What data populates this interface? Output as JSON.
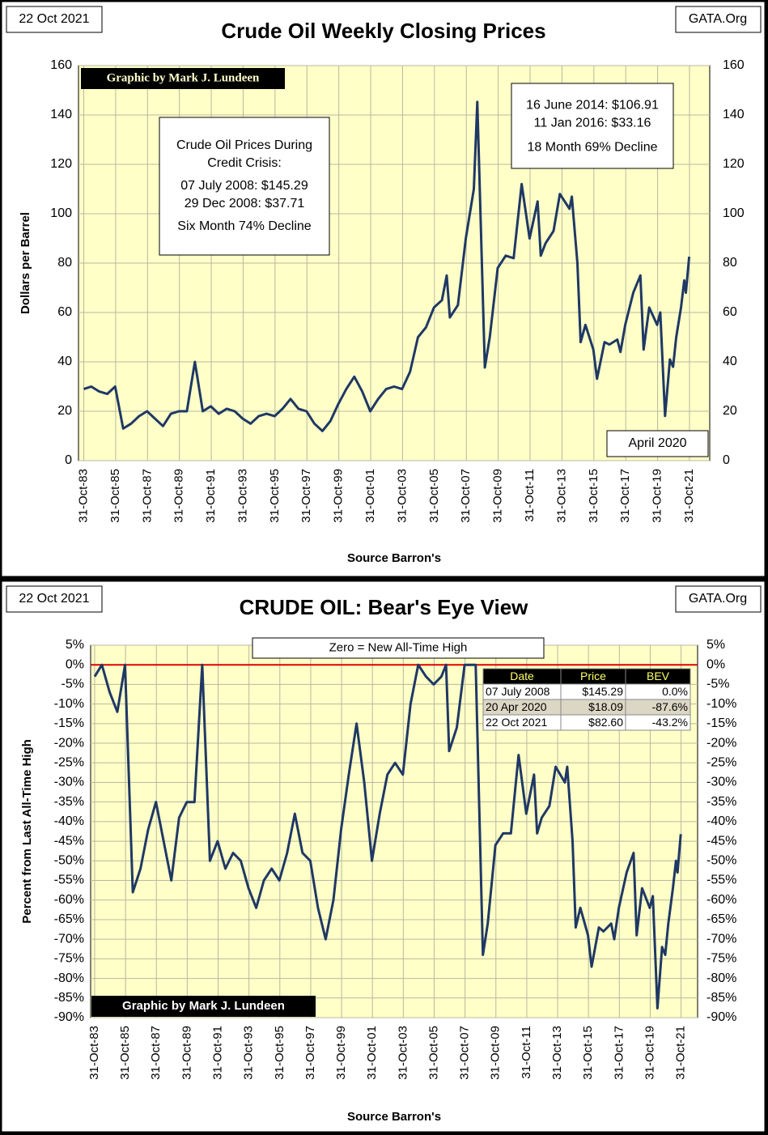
{
  "chart_data": [
    {
      "type": "line",
      "title": "Crude Oil  Weekly Closing Prices",
      "date_stamp": "22 Oct 2021",
      "source_tag": "GATA.Org",
      "x_label": "Source Barron's",
      "y_label": "Dollars  per  Barrel",
      "credit": "Graphic by Mark J. Lundeen",
      "notes": [
        [
          "Crude Oil Prices During",
          "Credit Crisis:",
          "07 July 2008: $145.29",
          "29 Dec 2008:  $37.71",
          "Six Month 74% Decline"
        ],
        [
          "16 June 2014: $106.91",
          "11 Jan 2016:  $33.16",
          "18 Month 69% Decline"
        ],
        [
          "April 2020"
        ]
      ],
      "xlim": [
        1983.5,
        2023.1
      ],
      "ylim": [
        0,
        160
      ],
      "yticks": [
        0,
        20,
        40,
        60,
        80,
        100,
        120,
        140,
        160
      ],
      "grid": true,
      "xticks": [
        {
          "value": 1983.83,
          "label": "31-Oct-83"
        },
        {
          "value": 1985.83,
          "label": "31-Oct-85"
        },
        {
          "value": 1987.83,
          "label": "31-Oct-87"
        },
        {
          "value": 1989.83,
          "label": "31-Oct-89"
        },
        {
          "value": 1991.83,
          "label": "31-Oct-91"
        },
        {
          "value": 1993.83,
          "label": "31-Oct-93"
        },
        {
          "value": 1995.83,
          "label": "31-Oct-95"
        },
        {
          "value": 1997.83,
          "label": "31-Oct-97"
        },
        {
          "value": 1999.83,
          "label": "31-Oct-99"
        },
        {
          "value": 2001.83,
          "label": "31-Oct-01"
        },
        {
          "value": 2003.83,
          "label": "31-Oct-03"
        },
        {
          "value": 2005.83,
          "label": "31-Oct-05"
        },
        {
          "value": 2007.83,
          "label": "31-Oct-07"
        },
        {
          "value": 2009.83,
          "label": "31-Oct-09"
        },
        {
          "value": 2011.83,
          "label": "31-Oct-11"
        },
        {
          "value": 2013.83,
          "label": "31-Oct-13"
        },
        {
          "value": 2015.83,
          "label": "31-Oct-15"
        },
        {
          "value": 2017.83,
          "label": "31-Oct-17"
        },
        {
          "value": 2019.83,
          "label": "31-Oct-19"
        },
        {
          "value": 2021.83,
          "label": "31-Oct-21"
        }
      ],
      "x": [
        1983.83,
        1984.3,
        1984.8,
        1985.3,
        1985.8,
        1986.3,
        1986.8,
        1987.3,
        1987.8,
        1988.3,
        1988.8,
        1989.3,
        1989.8,
        1990.3,
        1990.8,
        1991.3,
        1991.8,
        1992.3,
        1992.8,
        1993.3,
        1993.8,
        1994.3,
        1994.8,
        1995.3,
        1995.8,
        1996.3,
        1996.8,
        1997.3,
        1997.8,
        1998.3,
        1998.8,
        1999.3,
        1999.8,
        2000.3,
        2000.8,
        2001.3,
        2001.8,
        2002.3,
        2002.8,
        2003.3,
        2003.8,
        2004.3,
        2004.8,
        2005.3,
        2005.8,
        2006.3,
        2006.6,
        2006.8,
        2007.3,
        2007.8,
        2008.3,
        2008.52,
        2008.99,
        2009.3,
        2009.8,
        2010.3,
        2010.8,
        2011.3,
        2011.8,
        2012.3,
        2012.5,
        2012.8,
        2013.3,
        2013.7,
        2014.3,
        2014.45,
        2014.8,
        2015.0,
        2015.3,
        2015.8,
        2016.03,
        2016.5,
        2016.8,
        2017.3,
        2017.5,
        2017.8,
        2018.3,
        2018.75,
        2018.95,
        2019.3,
        2019.8,
        2020.0,
        2020.3,
        2020.6,
        2020.8,
        2021.0,
        2021.3,
        2021.5,
        2021.6,
        2021.81
      ],
      "series": [
        {
          "color": "#1f3864",
          "values": [
            29,
            30,
            28,
            27,
            30,
            13,
            15,
            18,
            20,
            17,
            14,
            19,
            20,
            20,
            40,
            20,
            22,
            19,
            21,
            20,
            17,
            15,
            18,
            19,
            18,
            21,
            25,
            21,
            20,
            15,
            12,
            16,
            23,
            29,
            34,
            28,
            20,
            25,
            29,
            30,
            29,
            36,
            50,
            54,
            62,
            65,
            75,
            58,
            63,
            90,
            110,
            145.29,
            37.71,
            50,
            78,
            83,
            82,
            112,
            90,
            105,
            83,
            88,
            93,
            108,
            102,
            106.91,
            80,
            48,
            55,
            45,
            33.16,
            48,
            47,
            49,
            44,
            55,
            68,
            75,
            45,
            62,
            55,
            60,
            18.09,
            41,
            38,
            50,
            62,
            73,
            68,
            82.6
          ]
        }
      ]
    },
    {
      "type": "line",
      "title": "CRUDE OIL:  Bear's Eye View",
      "date_stamp": "22 Oct 2021",
      "source_tag": "GATA.Org",
      "x_label": "Source Barron's",
      "y_label": "Percent from Last  All-Time  High",
      "credit": "Graphic by Mark J. Lundeen",
      "reference_line": {
        "value": 0,
        "label": "Zero = New All-Time High",
        "color": "#e00000"
      },
      "table": {
        "header": [
          "Date",
          "Price",
          "BEV"
        ],
        "rows": [
          [
            "07 July 2008",
            "$145.29",
            "0.0%"
          ],
          [
            "20 Apr 2020",
            "$18.09",
            "-87.6%"
          ],
          [
            "22 Oct 2021",
            "$82.60",
            "-43.2%"
          ]
        ]
      },
      "xlim": [
        1983.57,
        2022.9
      ],
      "ylim": [
        -90,
        5
      ],
      "grid": true,
      "yticks": [
        {
          "value": 5,
          "label": "5%"
        },
        {
          "value": 0,
          "label": "0%"
        },
        {
          "value": -5,
          "label": "-5%"
        },
        {
          "value": -10,
          "label": "-10%"
        },
        {
          "value": -15,
          "label": "-15%"
        },
        {
          "value": -20,
          "label": "-20%"
        },
        {
          "value": -25,
          "label": "-25%"
        },
        {
          "value": -30,
          "label": "-30%"
        },
        {
          "value": -35,
          "label": "-35%"
        },
        {
          "value": -40,
          "label": "-40%"
        },
        {
          "value": -45,
          "label": "-45%"
        },
        {
          "value": -50,
          "label": "-50%"
        },
        {
          "value": -55,
          "label": "-55%"
        },
        {
          "value": -60,
          "label": "-60%"
        },
        {
          "value": -65,
          "label": "-65%"
        },
        {
          "value": -70,
          "label": "-70%"
        },
        {
          "value": -75,
          "label": "-75%"
        },
        {
          "value": -80,
          "label": "-80%"
        },
        {
          "value": -85,
          "label": "-85%"
        },
        {
          "value": -90,
          "label": "-90%"
        }
      ],
      "xticks": [
        {
          "value": 1983.83,
          "label": "31-Oct-83"
        },
        {
          "value": 1985.83,
          "label": "31-Oct-85"
        },
        {
          "value": 1987.83,
          "label": "31-Oct-87"
        },
        {
          "value": 1989.83,
          "label": "31-Oct-89"
        },
        {
          "value": 1991.83,
          "label": "31-Oct-91"
        },
        {
          "value": 1993.83,
          "label": "31-Oct-93"
        },
        {
          "value": 1995.83,
          "label": "31-Oct-95"
        },
        {
          "value": 1997.83,
          "label": "31-Oct-97"
        },
        {
          "value": 1999.83,
          "label": "31-Oct-99"
        },
        {
          "value": 2001.83,
          "label": "31-Oct-01"
        },
        {
          "value": 2003.83,
          "label": "31-Oct-03"
        },
        {
          "value": 2005.83,
          "label": "31-Oct-05"
        },
        {
          "value": 2007.83,
          "label": "31-Oct-07"
        },
        {
          "value": 2009.83,
          "label": "31-Oct-09"
        },
        {
          "value": 2011.83,
          "label": "31-Oct-11"
        },
        {
          "value": 2013.83,
          "label": "31-Oct-13"
        },
        {
          "value": 2015.83,
          "label": "31-Oct-15"
        },
        {
          "value": 2017.83,
          "label": "31-Oct-17"
        },
        {
          "value": 2019.83,
          "label": "31-Oct-19"
        },
        {
          "value": 2021.83,
          "label": "31-Oct-21"
        }
      ],
      "x": [
        1983.83,
        1984.3,
        1984.8,
        1985.3,
        1985.8,
        1986.3,
        1986.8,
        1987.3,
        1987.8,
        1988.3,
        1988.8,
        1989.3,
        1989.8,
        1990.3,
        1990.8,
        1991.3,
        1991.8,
        1992.3,
        1992.8,
        1993.3,
        1993.8,
        1994.3,
        1994.8,
        1995.3,
        1995.8,
        1996.3,
        1996.8,
        1997.3,
        1997.8,
        1998.3,
        1998.8,
        1999.3,
        1999.8,
        2000.3,
        2000.8,
        2001.3,
        2001.8,
        2002.3,
        2002.8,
        2003.3,
        2003.8,
        2004.3,
        2004.8,
        2005.3,
        2005.8,
        2006.3,
        2006.6,
        2006.8,
        2007.3,
        2007.8,
        2008.3,
        2008.52,
        2008.99,
        2009.3,
        2009.8,
        2010.3,
        2010.8,
        2011.3,
        2011.8,
        2012.3,
        2012.5,
        2012.8,
        2013.3,
        2013.7,
        2014.3,
        2014.45,
        2014.8,
        2015.0,
        2015.3,
        2015.8,
        2016.03,
        2016.5,
        2016.8,
        2017.3,
        2017.5,
        2017.8,
        2018.3,
        2018.75,
        2018.95,
        2019.3,
        2019.8,
        2020.0,
        2020.3,
        2020.6,
        2020.8,
        2021.0,
        2021.3,
        2021.5,
        2021.6,
        2021.81
      ],
      "series": [
        {
          "color": "#1f3864",
          "values": [
            -3,
            0,
            -7,
            -12,
            0,
            -58,
            -52,
            -42,
            -35,
            -45,
            -55,
            -39,
            -35,
            -35,
            0,
            -50,
            -45,
            -52,
            -48,
            -50,
            -57,
            -62,
            -55,
            -52,
            -55,
            -48,
            -38,
            -48,
            -50,
            -62,
            -70,
            -60,
            -42,
            -28,
            -15,
            -30,
            -50,
            -38,
            -28,
            -25,
            -28,
            -10,
            0,
            -3,
            -5,
            -3,
            0,
            -22,
            -16,
            0,
            0,
            0,
            -74,
            -66,
            -46,
            -43,
            -43,
            -23,
            -38,
            -28,
            -43,
            -39,
            -36,
            -26,
            -30,
            -26,
            -45,
            -67,
            -62,
            -69,
            -77,
            -67,
            -68,
            -66,
            -70,
            -62,
            -53,
            -48,
            -69,
            -57,
            -62,
            -59,
            -87.6,
            -72,
            -74,
            -66,
            -57,
            -50,
            -53,
            -43.2
          ]
        }
      ]
    }
  ]
}
